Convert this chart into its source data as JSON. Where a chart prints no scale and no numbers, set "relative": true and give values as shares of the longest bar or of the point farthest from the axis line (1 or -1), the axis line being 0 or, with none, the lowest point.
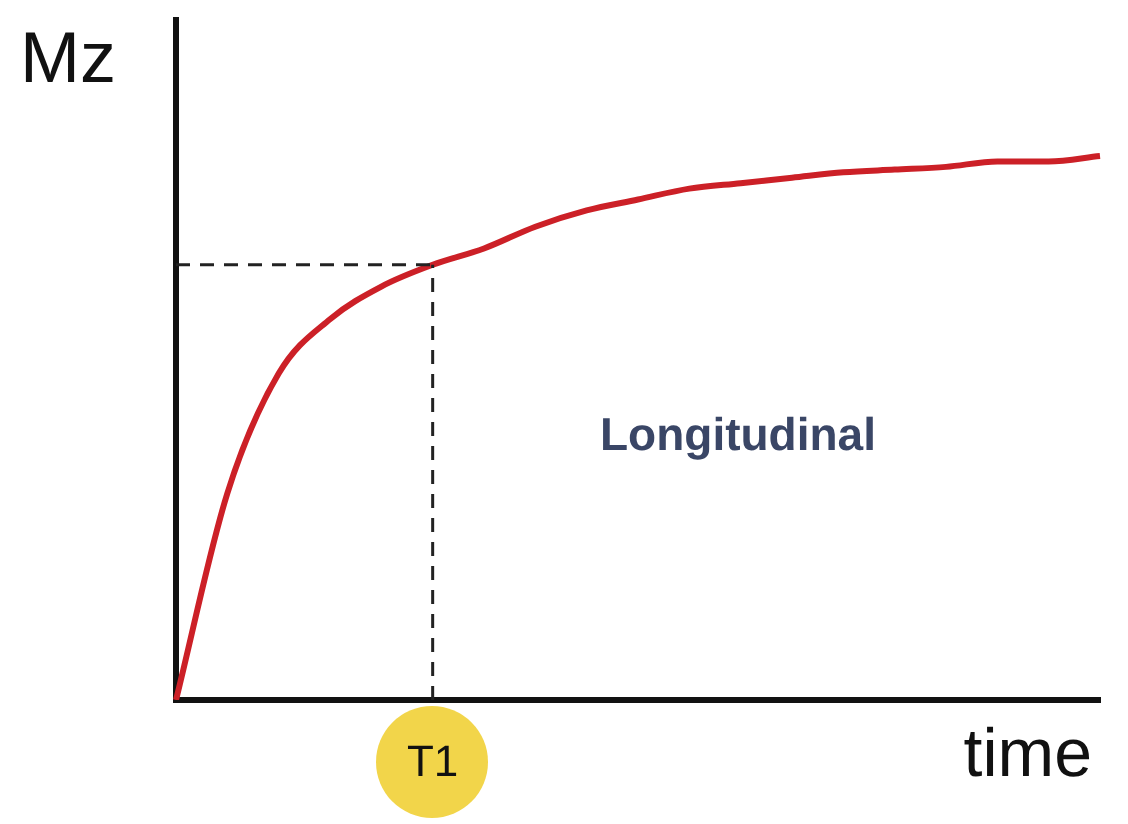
{
  "chart_data": {
    "type": "line",
    "ylabel": "Mz",
    "xlabel": "time",
    "relative": true,
    "categories": [
      null,
      null,
      null,
      null,
      null,
      null,
      null,
      null,
      null,
      null,
      null,
      null,
      null,
      null,
      null,
      null,
      null,
      null,
      null
    ],
    "series": [
      {
        "color": "#cc2027",
        "values": [
          0,
          0.38,
          0.6,
          0.7,
          0.76,
          0.8,
          0.83,
          0.87,
          0.9,
          0.92,
          0.94,
          0.95,
          0.96,
          0.97,
          0.975,
          0.98,
          0.99,
          0.99,
          1
        ]
      }
    ],
    "ref_lines": [
      {
        "axis": "y",
        "value": 0.8,
        "line_style": "dashed"
      }
    ],
    "annotations": [
      "Longitudinal",
      "T1"
    ]
  }
}
